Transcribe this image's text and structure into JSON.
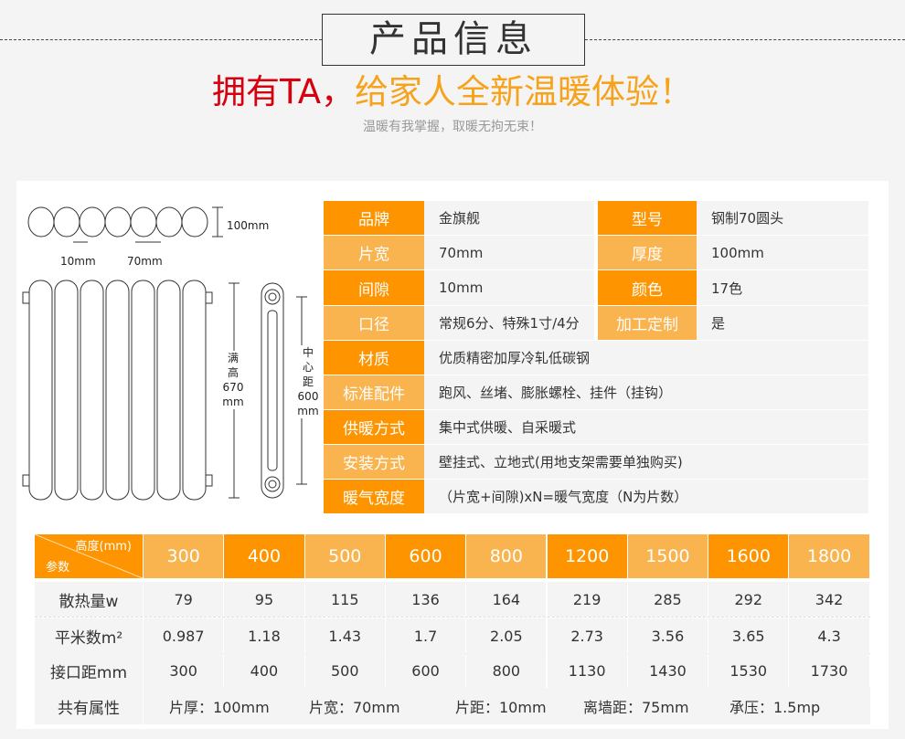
{
  "header": {
    "title": "产品信息",
    "slogan_red": "拥有TA，",
    "slogan_orange": "给家人全新温暖体验！",
    "subtitle": "温暖有我掌握，取暖无拘无束！"
  },
  "colors": {
    "dark_orange": "#fe9500",
    "light_orange": "#f9b450",
    "red": "#d7000f"
  },
  "diagram": {
    "height_top": "100mm",
    "gap": "10mm",
    "width": "70mm",
    "full_height": [
      "满",
      "高",
      "670",
      "mm"
    ],
    "center_distance": [
      "中",
      "心",
      "距",
      "600",
      "mm"
    ]
  },
  "specs": [
    {
      "label": "品牌",
      "value": "金旗舰",
      "label2": "型号",
      "value2": "钢制70圆头"
    },
    {
      "label": "片宽",
      "value": "70mm",
      "label2": "厚度",
      "value2": "100mm"
    },
    {
      "label": "间隙",
      "value": "10mm",
      "label2": "颜色",
      "value2": "17色"
    },
    {
      "label": "口径",
      "value": "常规6分、特殊1寸/4分",
      "label2": "加工定制",
      "value2": "是"
    },
    {
      "label": "材质",
      "value": "优质精密加厚冷轧低碳钢"
    },
    {
      "label": "标准配件",
      "value": "跑风、丝堵、膨胀螺栓、挂件（挂钩）"
    },
    {
      "label": "供暖方式",
      "value": "集中式供暖、自采暖式"
    },
    {
      "label": "安装方式",
      "value": "壁挂式、立地式(用地支架需要单独购买)"
    },
    {
      "label": "暖气宽度",
      "value": "（片宽+间隙)xN=暖气宽度（N为片数）"
    }
  ],
  "table": {
    "corner_top": "高度(mm)",
    "corner_bottom": "参数",
    "heights": [
      "300",
      "400",
      "500",
      "600",
      "800",
      "1200",
      "1500",
      "1600",
      "1800"
    ],
    "rows": [
      {
        "label": "散热量w",
        "values": [
          "79",
          "95",
          "115",
          "136",
          "164",
          "219",
          "285",
          "292",
          "342"
        ]
      },
      {
        "label": "平米数m²",
        "values": [
          "0.987",
          "1.18",
          "1.43",
          "1.7",
          "2.05",
          "2.73",
          "3.56",
          "3.65",
          "4.3"
        ]
      },
      {
        "label": "接口距mm",
        "values": [
          "300",
          "400",
          "500",
          "600",
          "800",
          "1130",
          "1430",
          "1530",
          "1730"
        ]
      }
    ],
    "common_label": "共有属性",
    "common": [
      "片厚：100mm",
      "片宽：70mm",
      "片距：10mm",
      "离墙距：75mm",
      "承压：1.5mp"
    ]
  }
}
